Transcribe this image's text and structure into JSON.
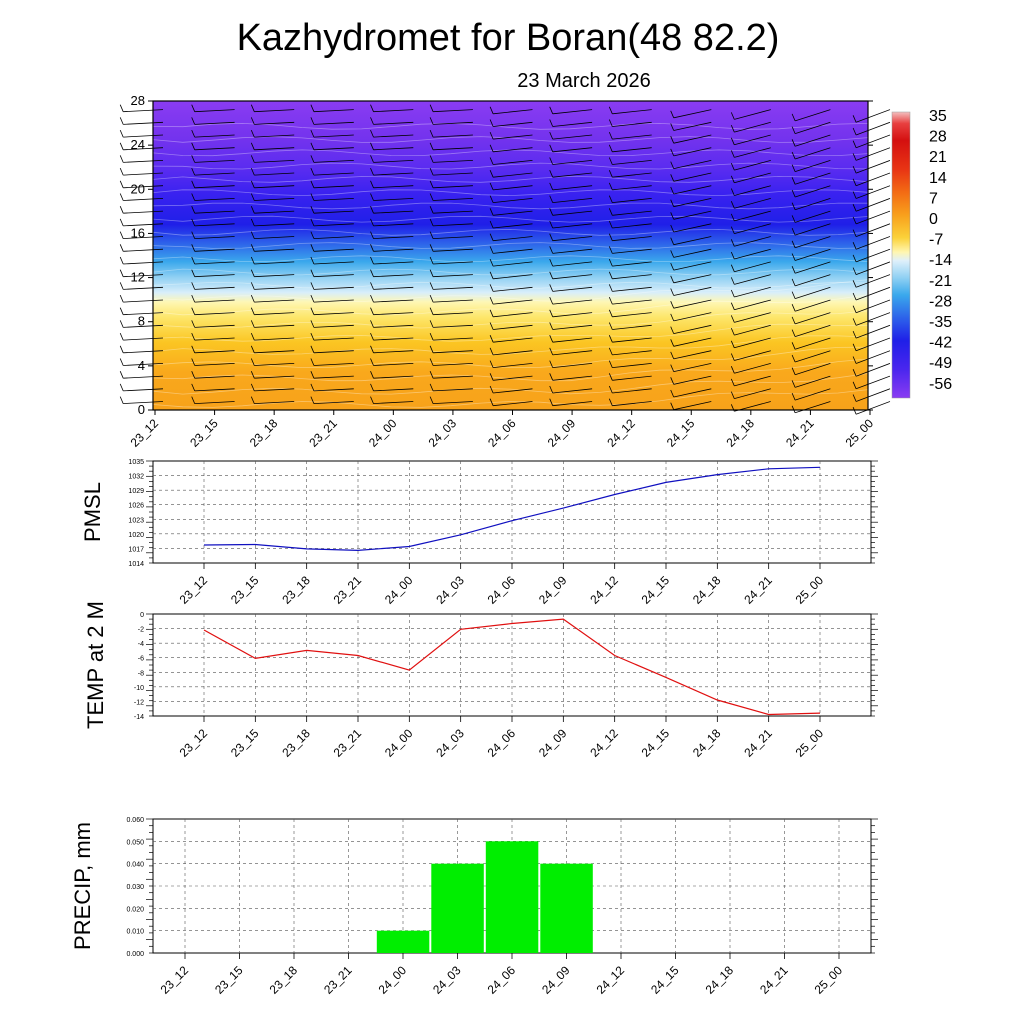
{
  "title": "Kazhydromet for Boran(48 82.2)",
  "subtitle": "23 March 2026",
  "colors": {
    "pmsl_line": "#1010c0",
    "temp_line": "#e01010",
    "precip_bar": "#00ee00"
  },
  "chart_data": [
    {
      "type": "heatmap",
      "name": "cross-section",
      "x_labels": [
        "23_12",
        "23_15",
        "23_18",
        "23_21",
        "24_00",
        "24_03",
        "24_06",
        "24_09",
        "24_12",
        "24_15",
        "24_18",
        "24_21",
        "25_00"
      ],
      "y_ticks": [
        "0",
        "4",
        "8",
        "12",
        "16",
        "20",
        "24",
        "28"
      ],
      "ylim": [
        0,
        28
      ],
      "colorbar_labels": [
        "35",
        "28",
        "21",
        "14",
        "7",
        "0",
        "-7",
        "-14",
        "-21",
        "-28",
        "-35",
        "-42",
        "-49",
        "-56"
      ],
      "bands": [
        {
          "from": 0,
          "to": 7,
          "color_value": 3
        },
        {
          "from": 7,
          "to": 10,
          "color_value": -8
        },
        {
          "from": 10,
          "to": 12,
          "color_value": -20
        },
        {
          "from": 12,
          "to": 16,
          "color_value": -38
        },
        {
          "from": 16,
          "to": 22,
          "color_value": -58
        },
        {
          "from": 22,
          "to": 28,
          "color_value": -52
        }
      ]
    },
    {
      "type": "line",
      "name": "pmsl",
      "ylabel": "PMSL",
      "x": [
        "23_12",
        "23_15",
        "23_18",
        "23_21",
        "24_00",
        "24_03",
        "24_06",
        "24_09",
        "24_12",
        "24_15",
        "24_18",
        "24_21",
        "25_00"
      ],
      "values": [
        1017.7,
        1017.8,
        1016.9,
        1016.6,
        1017.4,
        1019.8,
        1022.7,
        1025.3,
        1028.1,
        1030.6,
        1032.2,
        1033.4,
        1033.7
      ],
      "y_ticks": [
        "1014",
        "1017",
        "1020",
        "1023",
        "1026",
        "1029",
        "1032",
        "1035"
      ],
      "ylim": [
        1014,
        1035
      ]
    },
    {
      "type": "line",
      "name": "temp",
      "ylabel": "TEMP at 2 M",
      "x": [
        "23_12",
        "23_15",
        "23_18",
        "23_21",
        "24_00",
        "24_03",
        "24_06",
        "24_09",
        "24_12",
        "24_15",
        "24_18",
        "24_21",
        "25_00"
      ],
      "values": [
        -2.2,
        -6.1,
        -5.0,
        -5.7,
        -7.7,
        -2.1,
        -1.3,
        -0.7,
        -5.7,
        -8.7,
        -11.8,
        -13.8,
        -13.6
      ],
      "y_ticks": [
        "0",
        "-2",
        "-4",
        "-6",
        "-8",
        "-10",
        "-12",
        "-14"
      ],
      "ylim": [
        -14,
        0
      ]
    },
    {
      "type": "bar",
      "name": "precip",
      "ylabel": "PRECIP, mm",
      "x": [
        "23_12",
        "23_15",
        "23_18",
        "23_21",
        "24_00",
        "24_03",
        "24_06",
        "24_09",
        "24_12",
        "24_15",
        "24_18",
        "24_21",
        "25_00"
      ],
      "values": [
        0,
        0,
        0,
        0,
        0.01,
        0.04,
        0.05,
        0.04,
        0,
        0,
        0,
        0,
        0
      ],
      "y_ticks": [
        "0.000",
        "0.010",
        "0.020",
        "0.030",
        "0.040",
        "0.050",
        "0.060"
      ],
      "ylim": [
        0,
        0.06
      ]
    }
  ]
}
